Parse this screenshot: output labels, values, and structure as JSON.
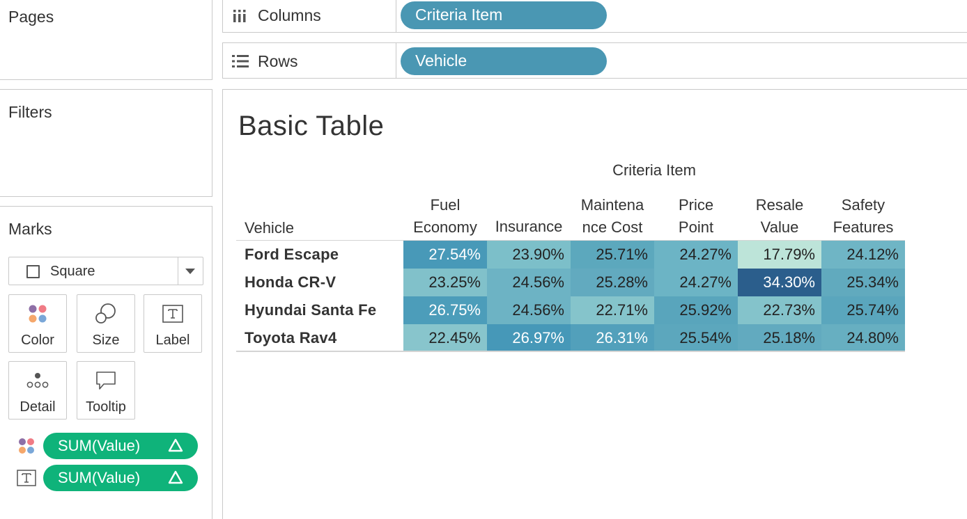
{
  "left_panel": {
    "pages": {
      "title": "Pages"
    },
    "filters": {
      "title": "Filters"
    },
    "marks": {
      "title": "Marks",
      "mark_type": "Square",
      "buttons": {
        "color": "Color",
        "size": "Size",
        "label": "Label",
        "detail": "Detail",
        "tooltip": "Tooltip"
      },
      "fields": [
        {
          "encoding": "color",
          "label": "SUM(Value)",
          "delta": "Δ"
        },
        {
          "encoding": "text",
          "label": "SUM(Value)",
          "delta": "Δ"
        }
      ]
    }
  },
  "shelves": {
    "columns": {
      "name": "Columns",
      "pill": "Criteria Item"
    },
    "rows": {
      "name": "Rows",
      "pill": "Vehicle"
    }
  },
  "view": {
    "title": "Basic Table",
    "column_group_header": "Criteria Item",
    "row_header": "Vehicle",
    "columns": [
      {
        "line1": "Fuel",
        "line2": "Economy"
      },
      {
        "line1": "",
        "line2": "Insurance"
      },
      {
        "line1": "Maintena",
        "line2": "nce Cost"
      },
      {
        "line1": "Price",
        "line2": "Point"
      },
      {
        "line1": "Resale",
        "line2": "Value"
      },
      {
        "line1": "Safety",
        "line2": "Features"
      }
    ]
  },
  "chart_data": {
    "type": "heatmap",
    "title": "Basic Table",
    "x_label": "Criteria Item",
    "y_label": "Vehicle",
    "categories": [
      "Fuel Economy",
      "Insurance",
      "Maintenance Cost",
      "Price Point",
      "Resale Value",
      "Safety Features"
    ],
    "rows": [
      {
        "label": "Ford Escape",
        "values": [
          "27.54%",
          "23.90%",
          "25.71%",
          "24.27%",
          "17.79%",
          "24.12%"
        ],
        "fills": [
          "#4899b8",
          "#7cbfc9",
          "#5ca8bd",
          "#6cb4c5",
          "#bde4d9",
          "#6fb5c5"
        ],
        "text_colors": [
          "#ffffff",
          "#222222",
          "#222222",
          "#222222",
          "#222222",
          "#222222"
        ]
      },
      {
        "label": "Honda CR-V",
        "values": [
          "23.25%",
          "24.56%",
          "25.28%",
          "24.27%",
          "34.30%",
          "25.34%"
        ],
        "fills": [
          "#81c1ca",
          "#6db3c4",
          "#62aabf",
          "#6cb4c5",
          "#2b5e8c",
          "#61aabe"
        ],
        "text_colors": [
          "#222222",
          "#222222",
          "#222222",
          "#222222",
          "#ffffff",
          "#222222"
        ]
      },
      {
        "label": "Hyundai Santa Fe",
        "values": [
          "26.75%",
          "24.56%",
          "22.71%",
          "25.92%",
          "22.73%",
          "25.74%"
        ],
        "fills": [
          "#4c9dba",
          "#6db3c4",
          "#85c4cb",
          "#59a5bc",
          "#84c3cb",
          "#5aa6bd"
        ],
        "text_colors": [
          "#ffffff",
          "#222222",
          "#222222",
          "#222222",
          "#222222",
          "#222222"
        ]
      },
      {
        "label": "Toyota Rav4",
        "values": [
          "22.45%",
          "26.97%",
          "26.31%",
          "25.54%",
          "25.18%",
          "24.80%"
        ],
        "fills": [
          "#88c5cc",
          "#4698b8",
          "#52a0bb",
          "#5ca7bd",
          "#62aabf",
          "#67afc1"
        ],
        "text_colors": [
          "#222222",
          "#ffffff",
          "#ffffff",
          "#222222",
          "#222222",
          "#222222"
        ]
      }
    ]
  },
  "colors": {
    "measure_pill": "#0fb37a",
    "dimension_pill": "#4a97b3"
  }
}
